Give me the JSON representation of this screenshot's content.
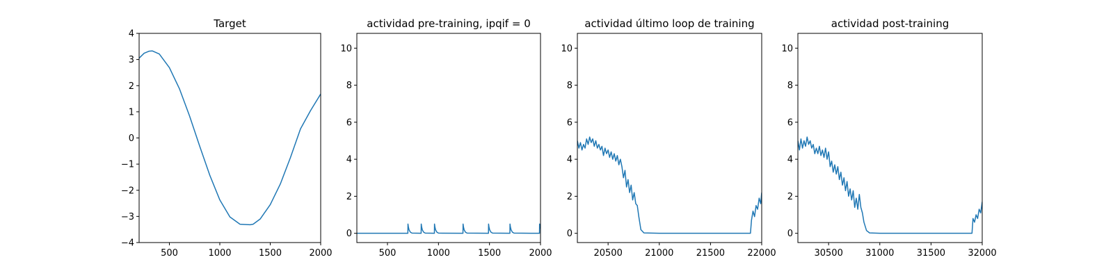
{
  "chart_data": [
    {
      "type": "line",
      "title": "Target",
      "xlabel": "",
      "ylabel": "",
      "xlim": [
        200,
        2000
      ],
      "ylim": [
        -4,
        4
      ],
      "xticks": [
        500,
        1000,
        1500,
        2000
      ],
      "yticks": [
        -4,
        -3,
        -2,
        -1,
        0,
        1,
        2,
        3,
        4
      ],
      "xtick_labels": [
        "500",
        "1000",
        "1500",
        "2000"
      ],
      "ytick_labels": [
        "−4",
        "−3",
        "−2",
        "−1",
        "0",
        "1",
        "2",
        "3",
        "4"
      ],
      "line_color": "#1f77b4",
      "series": [
        {
          "x": [
            200,
            250,
            300,
            330,
            400,
            500,
            600,
            700,
            800,
            900,
            1000,
            1100,
            1200,
            1300,
            1330,
            1400,
            1500,
            1600,
            1700,
            1800,
            1900,
            2000
          ],
          "y": [
            3.05,
            3.24,
            3.32,
            3.33,
            3.21,
            2.69,
            1.88,
            0.84,
            -0.31,
            -1.42,
            -2.37,
            -3.02,
            -3.3,
            -3.32,
            -3.3,
            -3.1,
            -2.55,
            -1.76,
            -0.75,
            0.35,
            1.05,
            1.68
          ]
        }
      ]
    },
    {
      "type": "line",
      "title": "actividad pre-training, ipqif = 0",
      "xlabel": "",
      "ylabel": "",
      "xlim": [
        200,
        2000
      ],
      "ylim": [
        -0.5,
        10.8
      ],
      "xticks": [
        500,
        1000,
        1500,
        2000
      ],
      "yticks": [
        0,
        2,
        4,
        6,
        8,
        10
      ],
      "xtick_labels": [
        "500",
        "1000",
        "1500",
        "2000"
      ],
      "ytick_labels": [
        "0",
        "2",
        "4",
        "6",
        "8",
        "10"
      ],
      "line_color": "#1f77b4",
      "series": [
        {
          "x": [
            200,
            700,
            701,
            705,
            712,
            725,
            740,
            830,
            831,
            835,
            842,
            855,
            870,
            960,
            961,
            965,
            972,
            985,
            1000,
            1240,
            1241,
            1245,
            1252,
            1265,
            1280,
            1490,
            1491,
            1495,
            1502,
            1515,
            1530,
            1700,
            1701,
            1705,
            1712,
            1725,
            1740,
            1990,
            1991,
            1995,
            2000
          ],
          "y": [
            0,
            0,
            0.5,
            0.35,
            0.18,
            0.06,
            0.01,
            0,
            0.5,
            0.35,
            0.18,
            0.06,
            0.01,
            0,
            0.5,
            0.35,
            0.18,
            0.06,
            0.01,
            0,
            0.5,
            0.35,
            0.18,
            0.06,
            0.01,
            0,
            0.5,
            0.35,
            0.18,
            0.06,
            0.01,
            0,
            0.5,
            0.35,
            0.18,
            0.06,
            0.01,
            0,
            0.5,
            0.38,
            0.25
          ]
        }
      ]
    },
    {
      "type": "line",
      "title": "actividad último loop de training",
      "xlabel": "",
      "ylabel": "",
      "xlim": [
        20200,
        22000
      ],
      "ylim": [
        -0.5,
        10.8
      ],
      "xticks": [
        20500,
        21000,
        21500,
        22000
      ],
      "yticks": [
        0,
        2,
        4,
        6,
        8,
        10
      ],
      "xtick_labels": [
        "20500",
        "21000",
        "21500",
        "22000"
      ],
      "ytick_labels": [
        "0",
        "2",
        "4",
        "6",
        "8",
        "10"
      ],
      "line_color": "#1f77b4",
      "series": [
        {
          "x": [
            20200,
            20215,
            20230,
            20245,
            20260,
            20275,
            20290,
            20305,
            20320,
            20335,
            20350,
            20365,
            20380,
            20395,
            20410,
            20425,
            20440,
            20455,
            20470,
            20485,
            20500,
            20515,
            20530,
            20545,
            20560,
            20575,
            20590,
            20605,
            20620,
            20635,
            20650,
            20665,
            20680,
            20695,
            20710,
            20725,
            20740,
            20755,
            20770,
            20785,
            20800,
            20820,
            20850,
            21000,
            21500,
            21880,
            21890,
            21900,
            21915,
            21930,
            21945,
            21960,
            21975,
            21990,
            22000
          ],
          "y": [
            5.0,
            4.6,
            4.9,
            4.5,
            4.8,
            4.6,
            5.1,
            4.8,
            5.2,
            4.9,
            5.1,
            4.7,
            5.0,
            4.6,
            4.8,
            4.5,
            4.7,
            4.2,
            4.6,
            4.3,
            4.5,
            4.1,
            4.4,
            4.0,
            4.3,
            3.9,
            4.2,
            3.7,
            4.0,
            3.6,
            3.0,
            3.4,
            2.5,
            2.9,
            2.2,
            2.6,
            1.8,
            2.2,
            1.6,
            1.5,
            0.9,
            0.2,
            0.02,
            0,
            0,
            0,
            0,
            0.7,
            1.2,
            0.9,
            1.5,
            1.3,
            1.9,
            1.6,
            2.2
          ]
        }
      ]
    },
    {
      "type": "line",
      "title": "actividad post-training",
      "xlabel": "",
      "ylabel": "",
      "xlim": [
        30200,
        32000
      ],
      "ylim": [
        -0.5,
        10.8
      ],
      "xticks": [
        30500,
        31000,
        31500,
        32000
      ],
      "yticks": [
        0,
        2,
        4,
        6,
        8,
        10
      ],
      "xtick_labels": [
        "30500",
        "31000",
        "31500",
        "32000"
      ],
      "ytick_labels": [
        "0",
        "2",
        "4",
        "6",
        "8",
        "10"
      ],
      "line_color": "#1f77b4",
      "series": [
        {
          "x": [
            30200,
            30215,
            30230,
            30245,
            30260,
            30275,
            30290,
            30305,
            30320,
            30335,
            30350,
            30365,
            30380,
            30395,
            30410,
            30425,
            30440,
            30455,
            30470,
            30485,
            30500,
            30515,
            30530,
            30545,
            30560,
            30575,
            30590,
            30605,
            30620,
            30635,
            30650,
            30665,
            30680,
            30695,
            30710,
            30725,
            30740,
            30755,
            30770,
            30785,
            30800,
            30815,
            30830,
            30845,
            30870,
            30900,
            31000,
            31500,
            31890,
            31900,
            31910,
            31925,
            31940,
            31955,
            31970,
            31985,
            32000
          ],
          "y": [
            5.0,
            4.5,
            5.1,
            4.6,
            5.0,
            4.7,
            5.2,
            4.8,
            5.0,
            4.6,
            4.8,
            4.3,
            4.6,
            4.3,
            4.7,
            4.2,
            4.5,
            4.1,
            4.6,
            4.0,
            4.4,
            3.6,
            3.9,
            3.3,
            3.7,
            3.2,
            3.6,
            2.9,
            3.3,
            2.6,
            3.0,
            2.3,
            2.8,
            2.0,
            2.4,
            1.8,
            2.3,
            1.4,
            1.9,
            1.3,
            2.1,
            1.4,
            1.1,
            0.6,
            0.15,
            0.02,
            0,
            0,
            0,
            0,
            0.8,
            0.6,
            1.0,
            0.8,
            1.3,
            1.1,
            1.7
          ]
        }
      ]
    }
  ]
}
